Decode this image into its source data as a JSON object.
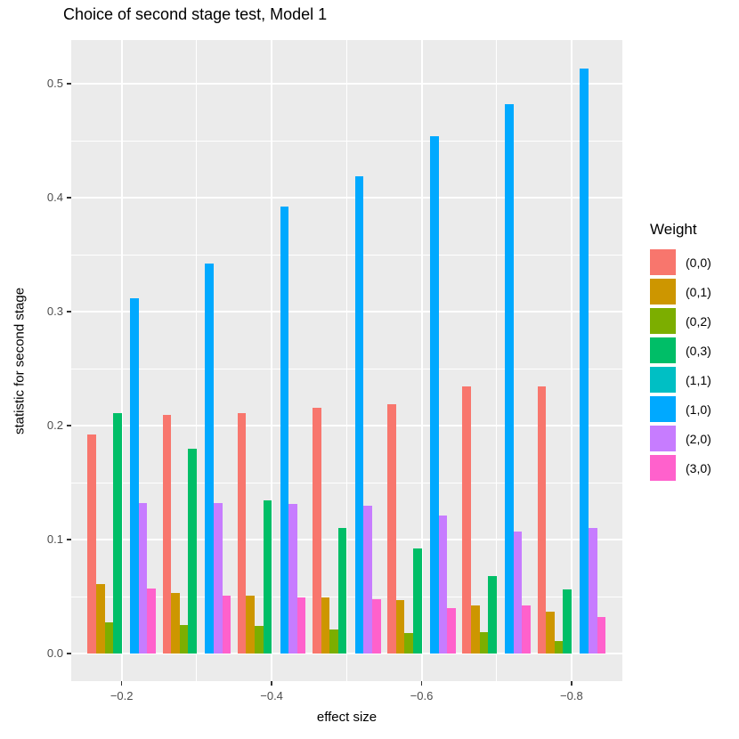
{
  "title": "Choice of second stage test, Model 1",
  "chart_data": {
    "type": "bar",
    "title": "Choice of second stage test, Model 1",
    "xlabel": "effect size",
    "ylabel": "statistic for second stage",
    "categories": [
      -0.2,
      -0.3,
      -0.4,
      -0.5,
      -0.6,
      -0.7,
      -0.8
    ],
    "x_major_ticks": {
      "values": [
        -0.2,
        -0.4,
        -0.6,
        -0.8
      ],
      "labels": [
        "−0.2",
        "−0.4",
        "−0.6",
        "−0.8"
      ]
    },
    "x_minor_ticks": [
      -0.3,
      -0.5,
      -0.7
    ],
    "y_major_ticks": {
      "values": [
        0.0,
        0.1,
        0.2,
        0.3,
        0.4,
        0.5
      ],
      "labels": [
        "0.0",
        "0.1",
        "0.2",
        "0.3",
        "0.4",
        "0.5"
      ]
    },
    "y_minor_ticks": [
      0.05,
      0.15,
      0.25,
      0.35,
      0.45
    ],
    "ylim": [
      -0.024,
      0.54
    ],
    "grid": true,
    "legend_title": "Weight",
    "legend_position": "right",
    "series": [
      {
        "name": "(0,0)",
        "color": "#F8766D",
        "values": [
          0.192,
          0.209,
          0.211,
          0.216,
          0.219,
          0.234,
          0.234
        ]
      },
      {
        "name": "(0,1)",
        "color": "#CD9600",
        "values": [
          0.061,
          0.053,
          0.051,
          0.049,
          0.047,
          0.042,
          0.037
        ]
      },
      {
        "name": "(0,2)",
        "color": "#7CAE00",
        "values": [
          0.027,
          0.025,
          0.024,
          0.021,
          0.018,
          0.019,
          0.011
        ]
      },
      {
        "name": "(0,3)",
        "color": "#00BE67",
        "values": [
          0.211,
          0.18,
          0.134,
          0.11,
          0.092,
          0.068,
          0.056
        ]
      },
      {
        "name": "(1,1)",
        "color": "#00BFC4",
        "values": [
          0,
          0,
          0,
          0,
          0,
          0,
          0
        ]
      },
      {
        "name": "(1,0)",
        "color": "#00A9FF",
        "values": [
          0.312,
          0.342,
          0.392,
          0.419,
          0.454,
          0.482,
          0.513
        ]
      },
      {
        "name": "(2,0)",
        "color": "#C77CFF",
        "values": [
          0.132,
          0.132,
          0.131,
          0.13,
          0.121,
          0.107,
          0.11
        ]
      },
      {
        "name": "(3,0)",
        "color": "#FF61CC",
        "values": [
          0.057,
          0.051,
          0.049,
          0.048,
          0.04,
          0.042,
          0.032
        ]
      }
    ]
  },
  "colors": {
    "page_bg": "#FFFFFF",
    "panel_bg": "#EBEBEB",
    "grid": "#FFFFFF",
    "tick_mark": "#333333",
    "axis_text": "#4D4D4D",
    "title_text": "#000000"
  }
}
